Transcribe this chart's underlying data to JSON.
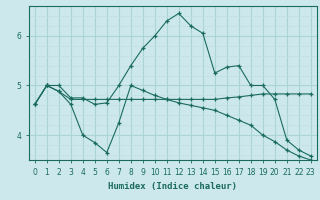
{
  "title": "",
  "xlabel": "Humidex (Indice chaleur)",
  "bg_color": "#cce8ec",
  "line_color": "#1a6b5e",
  "grid_major_color": "#aad4d8",
  "grid_minor_color": "#c0e0e4",
  "xlim": [
    -0.5,
    23.5
  ],
  "ylim": [
    3.5,
    6.6
  ],
  "yticks": [
    4,
    5,
    6
  ],
  "xticks": [
    0,
    1,
    2,
    3,
    4,
    5,
    6,
    7,
    8,
    9,
    10,
    11,
    12,
    13,
    14,
    15,
    16,
    17,
    18,
    19,
    20,
    21,
    22,
    23
  ],
  "lines": [
    {
      "x": [
        0,
        1,
        2,
        3,
        4,
        5,
        6,
        7,
        8,
        9,
        10,
        11,
        12,
        13,
        14,
        15,
        16,
        17,
        18,
        19,
        20,
        21,
        22,
        23
      ],
      "y": [
        4.62,
        5.0,
        4.88,
        4.72,
        4.72,
        4.72,
        4.72,
        4.72,
        4.72,
        4.72,
        4.72,
        4.72,
        4.72,
        4.72,
        4.72,
        4.72,
        4.75,
        4.77,
        4.8,
        4.83,
        4.83,
        4.83,
        4.83,
        4.83
      ]
    },
    {
      "x": [
        0,
        1,
        2,
        3,
        4,
        5,
        6,
        7,
        8,
        9,
        10,
        11,
        12,
        13,
        14,
        15,
        16,
        17,
        18,
        19,
        20,
        21,
        22,
        23
      ],
      "y": [
        4.62,
        5.0,
        5.0,
        4.75,
        4.75,
        4.62,
        4.65,
        5.0,
        5.4,
        5.75,
        6.0,
        6.3,
        6.45,
        6.2,
        6.05,
        5.25,
        5.37,
        5.4,
        5.0,
        5.0,
        4.72,
        3.9,
        3.7,
        3.58
      ]
    },
    {
      "x": [
        0,
        1,
        2,
        3,
        4,
        5,
        6,
        7,
        8,
        9,
        10,
        11,
        12,
        13,
        14,
        15,
        16,
        17,
        18,
        19,
        20,
        21,
        22,
        23
      ],
      "y": [
        4.62,
        5.0,
        4.88,
        4.62,
        4.0,
        3.85,
        3.65,
        4.25,
        5.0,
        4.9,
        4.8,
        4.72,
        4.65,
        4.6,
        4.55,
        4.5,
        4.4,
        4.3,
        4.2,
        4.0,
        3.87,
        3.7,
        3.58,
        3.5
      ]
    }
  ]
}
